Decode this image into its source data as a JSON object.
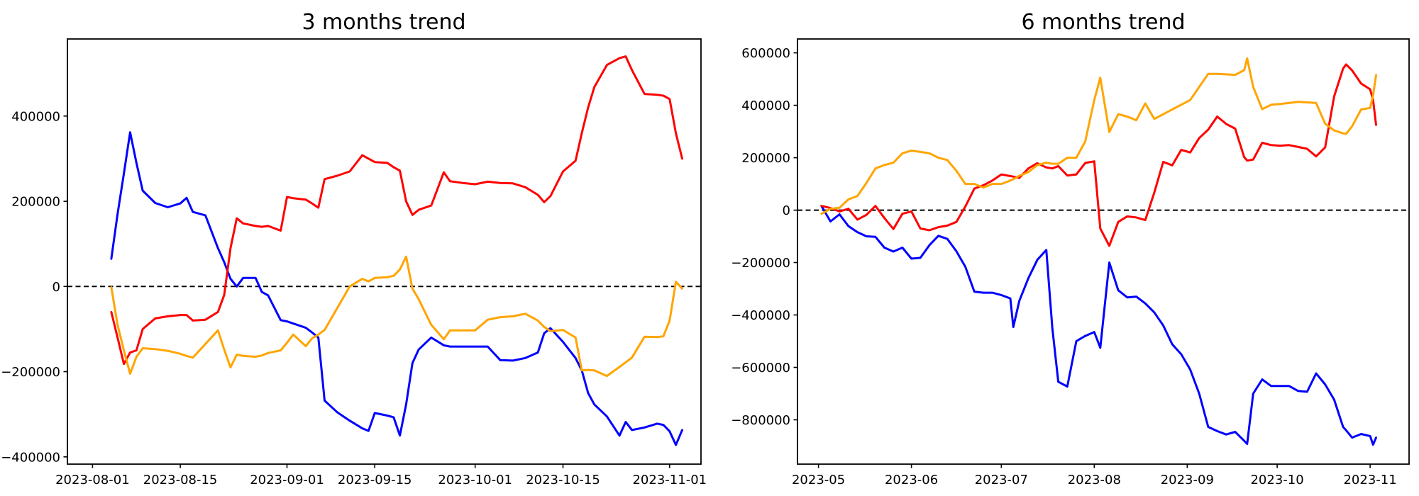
{
  "figure": {
    "background": "#ffffff",
    "text_color": "#000000"
  },
  "chart_data": [
    {
      "type": "line",
      "title": "3 months trend",
      "grid": false,
      "legend": null,
      "zero_line": true,
      "xlim": [
        "2023-07-28",
        "2023-11-06"
      ],
      "ylim": [
        -417000,
        581000
      ],
      "xticks": [
        {
          "date": "2023-08-01",
          "label": "2023-08-01"
        },
        {
          "date": "2023-08-15",
          "label": "2023-08-15"
        },
        {
          "date": "2023-09-01",
          "label": "2023-09-01"
        },
        {
          "date": "2023-09-15",
          "label": "2023-09-15"
        },
        {
          "date": "2023-10-01",
          "label": "2023-10-01"
        },
        {
          "date": "2023-10-15",
          "label": "2023-10-15"
        },
        {
          "date": "2023-11-01",
          "label": "2023-11-01"
        }
      ],
      "yticks": [
        {
          "value": 400000,
          "label": "400000"
        },
        {
          "value": 200000,
          "label": "200000"
        },
        {
          "value": 0,
          "label": "0"
        },
        {
          "value": -200000,
          "label": "−200000"
        },
        {
          "value": -400000,
          "label": "−400000"
        }
      ],
      "x": [
        "2023-08-04",
        "2023-08-05",
        "2023-08-06",
        "2023-08-07",
        "2023-08-08",
        "2023-08-09",
        "2023-08-11",
        "2023-08-13",
        "2023-08-15",
        "2023-08-16",
        "2023-08-17",
        "2023-08-19",
        "2023-08-21",
        "2023-08-22",
        "2023-08-23",
        "2023-08-24",
        "2023-08-25",
        "2023-08-27",
        "2023-08-28",
        "2023-08-29",
        "2023-08-31",
        "2023-09-01",
        "2023-09-02",
        "2023-09-04",
        "2023-09-05",
        "2023-09-06",
        "2023-09-07",
        "2023-09-09",
        "2023-09-11",
        "2023-09-13",
        "2023-09-14",
        "2023-09-15",
        "2023-09-17",
        "2023-09-18",
        "2023-09-19",
        "2023-09-20",
        "2023-09-21",
        "2023-09-22",
        "2023-09-24",
        "2023-09-26",
        "2023-09-27",
        "2023-09-29",
        "2023-10-01",
        "2023-10-03",
        "2023-10-05",
        "2023-10-07",
        "2023-10-09",
        "2023-10-11",
        "2023-10-12",
        "2023-10-13",
        "2023-10-15",
        "2023-10-17",
        "2023-10-18",
        "2023-10-19",
        "2023-10-20",
        "2023-10-22",
        "2023-10-24",
        "2023-10-25",
        "2023-10-26",
        "2023-10-28",
        "2023-10-30",
        "2023-10-31",
        "2023-11-01",
        "2023-11-02",
        "2023-11-03"
      ],
      "series": [
        {
          "name": "blue",
          "color": "#0000ff",
          "values": [
            65000,
            170000,
            265000,
            362000,
            290000,
            225000,
            196000,
            186000,
            195000,
            208000,
            175000,
            167000,
            90000,
            57000,
            18000,
            0,
            20000,
            20000,
            -13000,
            -21000,
            -79000,
            -82000,
            -87000,
            -97000,
            -108000,
            -120000,
            -268000,
            -295000,
            -315000,
            -333000,
            -339000,
            -297000,
            -303000,
            -307000,
            -350000,
            -277000,
            -180000,
            -148000,
            -120000,
            -138000,
            -141000,
            -141000,
            -141000,
            -141000,
            -173000,
            -174000,
            -168000,
            -155000,
            -110000,
            -98000,
            -130000,
            -168000,
            -197000,
            -250000,
            -277000,
            -305000,
            -350000,
            -318000,
            -337000,
            -331000,
            -322000,
            -325000,
            -340000,
            -372000,
            -337000
          ]
        },
        {
          "name": "red",
          "color": "#ff0000",
          "values": [
            -60000,
            -120000,
            -182000,
            -155000,
            -150000,
            -100000,
            -75000,
            -70000,
            -67000,
            -67000,
            -80000,
            -78000,
            -60000,
            -20000,
            90000,
            160000,
            148000,
            142000,
            140000,
            142000,
            131000,
            210000,
            207000,
            204000,
            195000,
            185000,
            252000,
            260000,
            270000,
            308000,
            300000,
            292000,
            290000,
            280000,
            272000,
            200000,
            168000,
            180000,
            190000,
            268000,
            247000,
            243000,
            240000,
            246000,
            243000,
            242000,
            233000,
            215000,
            198000,
            212000,
            270000,
            295000,
            360000,
            420000,
            468000,
            520000,
            536000,
            540000,
            508000,
            452000,
            450000,
            448000,
            440000,
            360000,
            300000
          ]
        },
        {
          "name": "orange",
          "color": "#ffa500",
          "values": [
            -2000,
            -90000,
            -150000,
            -205000,
            -165000,
            -145000,
            -147000,
            -151000,
            -158000,
            -163000,
            -167000,
            -135000,
            -103000,
            -148000,
            -190000,
            -160000,
            -163000,
            -165000,
            -162000,
            -156000,
            -150000,
            -132000,
            -113000,
            -140000,
            -122000,
            -113000,
            -102000,
            -51000,
            0,
            18000,
            12000,
            20000,
            22000,
            25000,
            40000,
            70000,
            -5000,
            -30000,
            -90000,
            -124000,
            -103000,
            -103000,
            -103000,
            -78000,
            -72000,
            -70000,
            -64000,
            -80000,
            -95000,
            -105000,
            -102000,
            -120000,
            -197000,
            -196000,
            -197000,
            -210000,
            -189000,
            -178000,
            -167000,
            -118000,
            -119000,
            -117000,
            -80000,
            11000,
            -5000
          ]
        }
      ]
    },
    {
      "type": "line",
      "title": "6 months trend",
      "grid": false,
      "legend": null,
      "zero_line": true,
      "xlim": [
        "2023-04-24",
        "2023-11-14"
      ],
      "ylim": [
        -969000,
        653000
      ],
      "xticks": [
        {
          "date": "2023-05-01",
          "label": "2023-05"
        },
        {
          "date": "2023-06-01",
          "label": "2023-06"
        },
        {
          "date": "2023-07-01",
          "label": "2023-07"
        },
        {
          "date": "2023-08-01",
          "label": "2023-08"
        },
        {
          "date": "2023-09-01",
          "label": "2023-09"
        },
        {
          "date": "2023-10-01",
          "label": "2023-10"
        },
        {
          "date": "2023-11-01",
          "label": "2023-11"
        }
      ],
      "yticks": [
        {
          "value": 600000,
          "label": "600000"
        },
        {
          "value": 400000,
          "label": "400000"
        },
        {
          "value": 200000,
          "label": "200000"
        },
        {
          "value": 0,
          "label": "0"
        },
        {
          "value": -200000,
          "label": "−200000"
        },
        {
          "value": -400000,
          "label": "−400000"
        },
        {
          "value": -600000,
          "label": "−600000"
        },
        {
          "value": -800000,
          "label": "−800000"
        }
      ],
      "x": [
        "2023-05-02",
        "2023-05-05",
        "2023-05-08",
        "2023-05-11",
        "2023-05-14",
        "2023-05-17",
        "2023-05-20",
        "2023-05-23",
        "2023-05-26",
        "2023-05-29",
        "2023-06-01",
        "2023-06-04",
        "2023-06-07",
        "2023-06-10",
        "2023-06-13",
        "2023-06-16",
        "2023-06-19",
        "2023-06-22",
        "2023-06-25",
        "2023-06-28",
        "2023-07-01",
        "2023-07-04",
        "2023-07-05",
        "2023-07-07",
        "2023-07-10",
        "2023-07-13",
        "2023-07-16",
        "2023-07-18",
        "2023-07-20",
        "2023-07-23",
        "2023-07-26",
        "2023-07-29",
        "2023-08-01",
        "2023-08-03",
        "2023-08-06",
        "2023-08-09",
        "2023-08-12",
        "2023-08-15",
        "2023-08-18",
        "2023-08-21",
        "2023-08-24",
        "2023-08-27",
        "2023-08-30",
        "2023-09-02",
        "2023-09-05",
        "2023-09-08",
        "2023-09-11",
        "2023-09-14",
        "2023-09-17",
        "2023-09-20",
        "2023-09-21",
        "2023-09-23",
        "2023-09-26",
        "2023-09-29",
        "2023-10-02",
        "2023-10-05",
        "2023-10-08",
        "2023-10-11",
        "2023-10-14",
        "2023-10-17",
        "2023-10-20",
        "2023-10-23",
        "2023-10-24",
        "2023-10-26",
        "2023-10-29",
        "2023-11-01",
        "2023-11-02",
        "2023-11-03"
      ],
      "series": [
        {
          "name": "blue",
          "color": "#0000ff",
          "values": [
            16000,
            -43000,
            -16000,
            -61000,
            -84000,
            -100000,
            -102000,
            -143000,
            -158000,
            -143000,
            -185000,
            -182000,
            -134000,
            -98000,
            -110000,
            -157000,
            -216000,
            -311000,
            -315000,
            -315000,
            -324000,
            -337000,
            -446000,
            -346000,
            -260000,
            -190000,
            -152000,
            -450000,
            -655000,
            -673000,
            -500000,
            -480000,
            -465000,
            -525000,
            -200000,
            -306000,
            -333000,
            -330000,
            -356000,
            -390000,
            -440000,
            -512000,
            -550000,
            -608000,
            -700000,
            -827000,
            -843000,
            -856000,
            -846000,
            -880000,
            -892000,
            -700000,
            -646000,
            -671000,
            -671000,
            -671000,
            -690000,
            -693000,
            -623000,
            -665000,
            -723000,
            -827000,
            -840000,
            -868000,
            -854000,
            -862000,
            -895000,
            -868000
          ]
        },
        {
          "name": "red",
          "color": "#ff0000",
          "values": [
            16000,
            8000,
            -5000,
            5000,
            -36000,
            -18000,
            16000,
            -30000,
            -72000,
            -14000,
            -5000,
            -70000,
            -77000,
            -65000,
            -59000,
            -45000,
            14000,
            82000,
            95000,
            113000,
            136000,
            130000,
            128000,
            123000,
            159000,
            179000,
            163000,
            159000,
            168000,
            132000,
            136000,
            180000,
            186000,
            -70000,
            -136000,
            -45000,
            -24000,
            -28000,
            -38000,
            66000,
            184000,
            171000,
            230000,
            220000,
            275000,
            307000,
            357000,
            329000,
            311000,
            202000,
            189000,
            193000,
            257000,
            248000,
            246000,
            248000,
            241000,
            234000,
            205000,
            239000,
            434000,
            540000,
            556000,
            533000,
            483000,
            461000,
            420000,
            325000
          ]
        },
        {
          "name": "orange",
          "color": "#ffa500",
          "values": [
            -14000,
            5000,
            9000,
            41000,
            54000,
            104000,
            159000,
            172000,
            181000,
            217000,
            227000,
            222000,
            217000,
            200000,
            191000,
            150000,
            100000,
            100000,
            86000,
            100000,
            100000,
            113000,
            118000,
            131000,
            145000,
            172000,
            181000,
            177000,
            177000,
            200000,
            200000,
            262000,
            420000,
            505000,
            298000,
            366000,
            357000,
            343000,
            407000,
            348000,
            366000,
            384000,
            402000,
            420000,
            470000,
            520000,
            520000,
            518000,
            516000,
            534000,
            579000,
            470000,
            385000,
            402000,
            405000,
            409000,
            413000,
            411000,
            409000,
            330000,
            304000,
            293000,
            291000,
            320000,
            384000,
            390000,
            438000,
            515000
          ]
        }
      ]
    }
  ]
}
